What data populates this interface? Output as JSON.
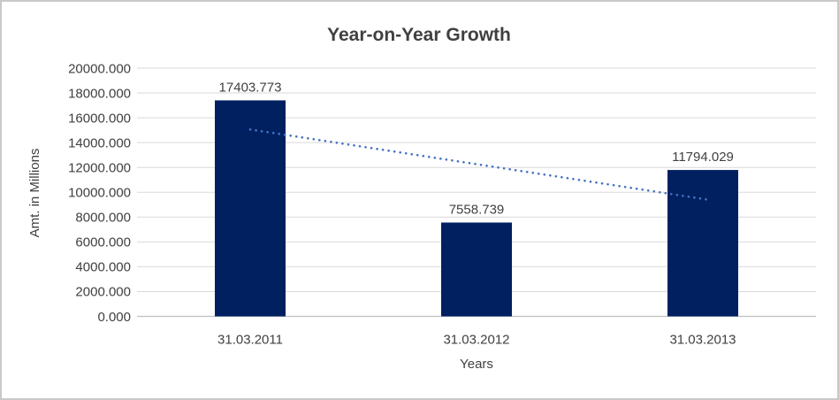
{
  "chart_data": {
    "type": "bar",
    "title": "Year-on-Year Growth",
    "xlabel": "Years",
    "ylabel": "Amt. in Millions",
    "categories": [
      "31.03.2011",
      "31.03.2012",
      "31.03.2013"
    ],
    "values": [
      17403.773,
      7558.739,
      11794.029
    ],
    "data_labels": [
      "17403.773",
      "7558.739",
      "11794.029"
    ],
    "ylim": [
      0,
      20000
    ],
    "ytick_step": 2000,
    "ytick_labels": [
      "0.000",
      "2000.000",
      "4000.000",
      "6000.000",
      "8000.000",
      "10000.000",
      "12000.000",
      "14000.000",
      "16000.000",
      "18000.000",
      "20000.000"
    ],
    "grid": true,
    "legend": "none",
    "trendline": {
      "type": "linear",
      "style": "dotted",
      "values": [
        15057.05,
        9447.31
      ],
      "color": "#4472c4"
    },
    "colors": {
      "bar": "#002060",
      "gridline": "#d9d9d9",
      "axis_line": "#bfbfbf",
      "text": "#404040",
      "background": "#ffffff",
      "frame_border": "#c9c9c9"
    }
  }
}
